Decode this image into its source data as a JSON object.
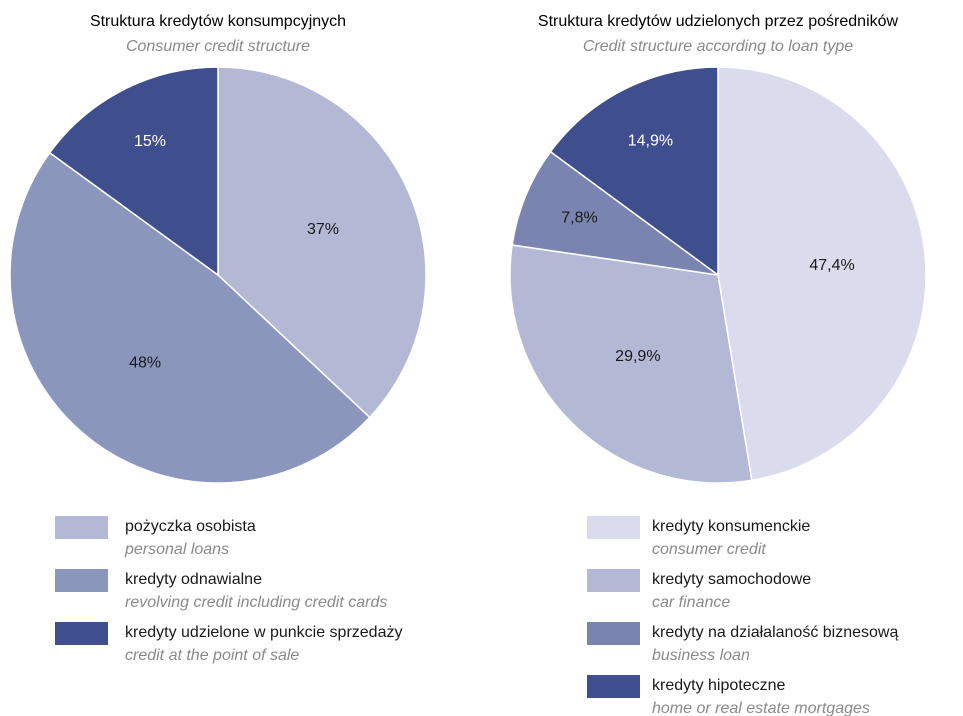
{
  "chart_data": [
    {
      "type": "pie",
      "title": "Struktura kredytów konsumpcyjnych",
      "subtitle": "Consumer credit structure",
      "categories": [
        "pożyczka osobista",
        "kredyty odnawialne",
        "kredyty udzielone w punkcie sprzedaży"
      ],
      "category_translations": [
        "personal loans",
        "revolving credit including credit cards",
        "credit at the point of sale"
      ],
      "values": [
        37,
        48,
        15
      ],
      "value_labels": [
        "37%",
        "48%",
        "15%"
      ],
      "colors": [
        "#b3b8d4",
        "#8b96bd",
        "#3f4e8c"
      ]
    },
    {
      "type": "pie",
      "title": "Struktura kredytów udzielonych przez pośredników",
      "subtitle": "Credit structure according to loan type",
      "categories": [
        "kredyty konsumenckie",
        "kredyty samochodowe",
        "kredyty na działalaność biznesową",
        "kredyty hipoteczne"
      ],
      "category_translations": [
        "consumer credit",
        "car finance",
        "business loan",
        "home or real estate mortgages"
      ],
      "values": [
        47.4,
        29.9,
        7.8,
        14.9
      ],
      "value_labels": [
        "47,4%",
        "29,9%",
        "7,8%",
        "14,9%"
      ],
      "colors": [
        "#dadced",
        "#b3b8d4",
        "#7a84b0",
        "#3f4e8c"
      ]
    }
  ]
}
